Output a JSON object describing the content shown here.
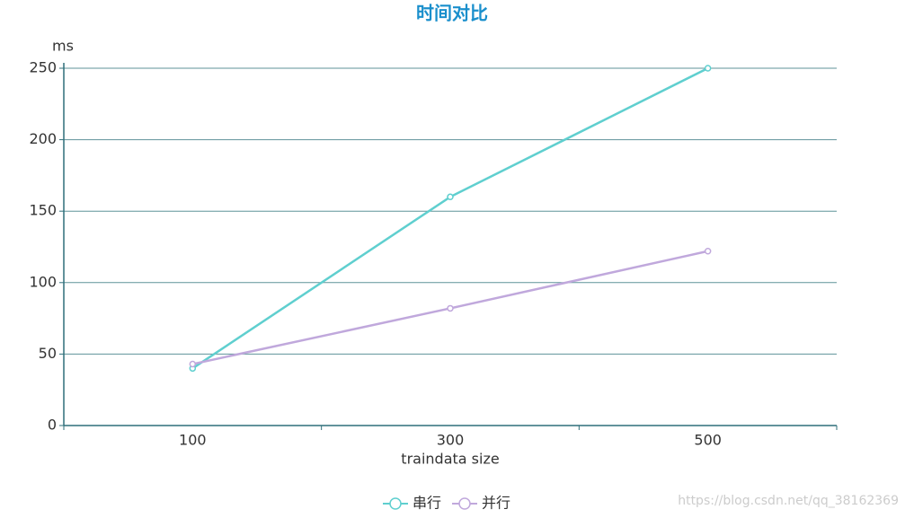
{
  "chart_data": {
    "type": "line",
    "title": "时间对比",
    "y_label": "ms",
    "x_label": "traindata size",
    "categories": [
      "100",
      "300",
      "500"
    ],
    "series": [
      {
        "name": "串行",
        "color": "#5fcfcf",
        "values": [
          40,
          160,
          250
        ]
      },
      {
        "name": "并行",
        "color": "#c0a8dc",
        "values": [
          43,
          82,
          122
        ]
      }
    ],
    "ylim": [
      0,
      250
    ],
    "yticks": [
      0,
      50,
      100,
      150,
      200,
      250
    ],
    "grid": true,
    "legend": "bottom",
    "watermark": "https://blog.csdn.net/qq_38162369"
  }
}
